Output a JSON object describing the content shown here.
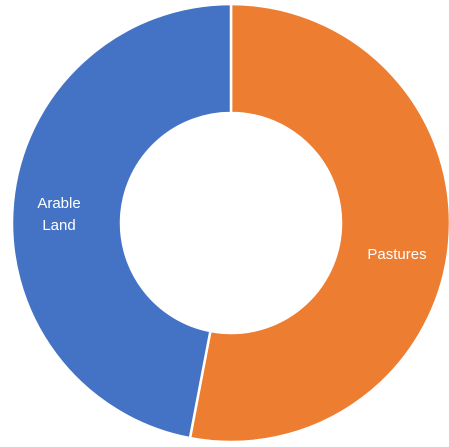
{
  "chart_data": {
    "type": "pie",
    "variant": "donut",
    "title": "",
    "legend": "none",
    "slices": [
      {
        "label": "Pastures",
        "label_lines": [
          "Pastures"
        ],
        "value": 53,
        "color": "#ED7D31"
      },
      {
        "label": "Arable Land",
        "label_lines": [
          "Arable",
          "Land"
        ],
        "value": 47,
        "color": "#4472C4"
      }
    ],
    "start_angle_deg": 0,
    "direction": "clockwise",
    "slice_border_color": "#ffffff"
  }
}
